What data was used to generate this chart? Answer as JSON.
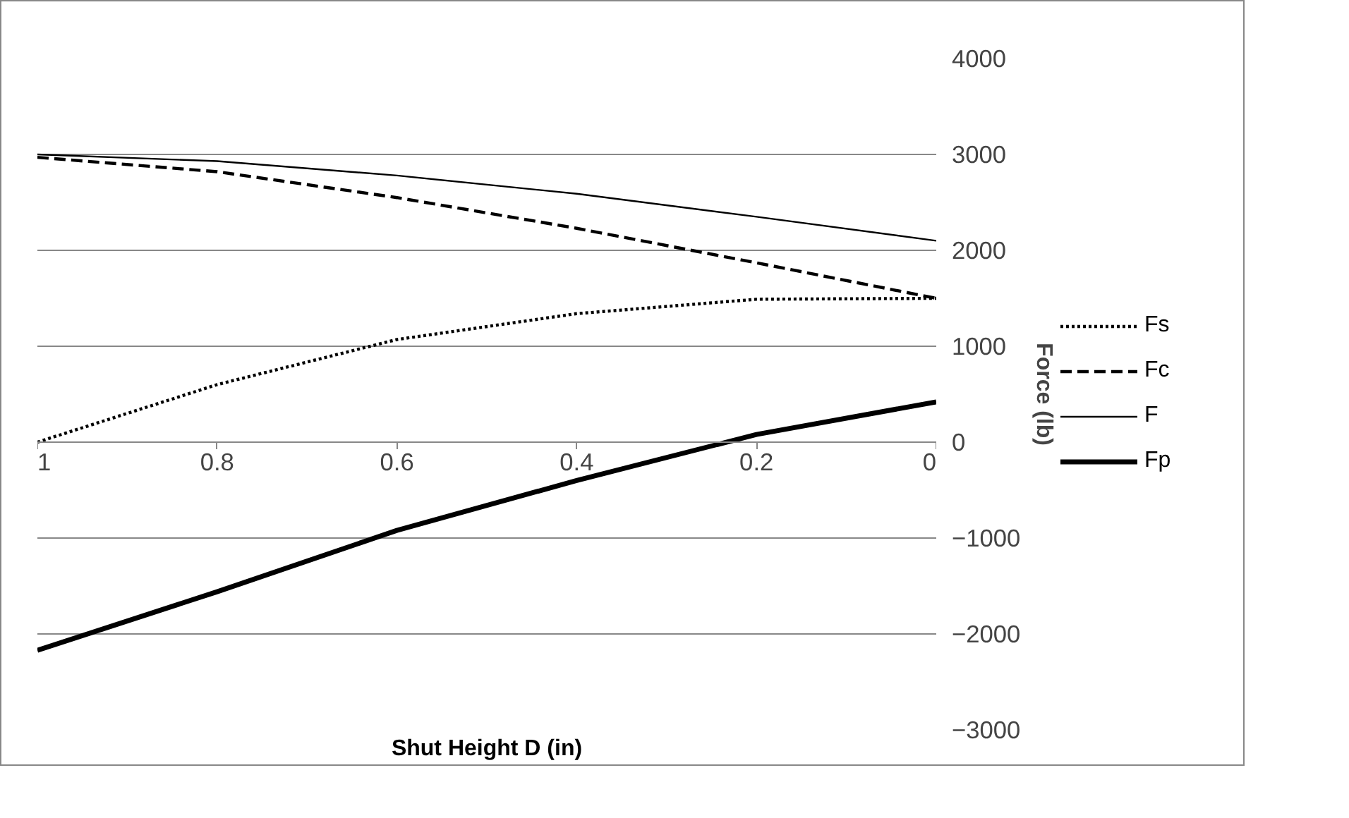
{
  "chart_data": {
    "type": "line",
    "xlabel": "Shut Height D (in)",
    "ylabel": "Force (lb)",
    "x": [
      1,
      0.8,
      0.6,
      0.4,
      0.2,
      0
    ],
    "xlim": [
      1,
      0
    ],
    "xticks": [
      1,
      0.8,
      0.6,
      0.4,
      0.2,
      0
    ],
    "ylim": [
      -3000,
      4000
    ],
    "yticks": [
      -3000,
      -2000,
      -1000,
      0,
      1000,
      2000,
      3000,
      4000
    ],
    "grid": "y",
    "legend": "right",
    "marker": "none",
    "series": [
      {
        "name": "Fs",
        "color": "#000000",
        "line_style": "dotted",
        "values": [
          0,
          600,
          1070,
          1340,
          1490,
          1500
        ]
      },
      {
        "name": "Fc",
        "color": "#000000",
        "line_style": "dashed",
        "values": [
          2970,
          2820,
          2550,
          2230,
          1870,
          1500
        ]
      },
      {
        "name": "F",
        "color": "#000000",
        "line_style": "solid",
        "values": [
          3000,
          2930,
          2780,
          2590,
          2350,
          2100
        ]
      },
      {
        "name": "Fp",
        "color": "#000000",
        "line_style": "solid",
        "values": [
          -2170,
          -1560,
          -920,
          -400,
          80,
          420
        ]
      }
    ]
  }
}
